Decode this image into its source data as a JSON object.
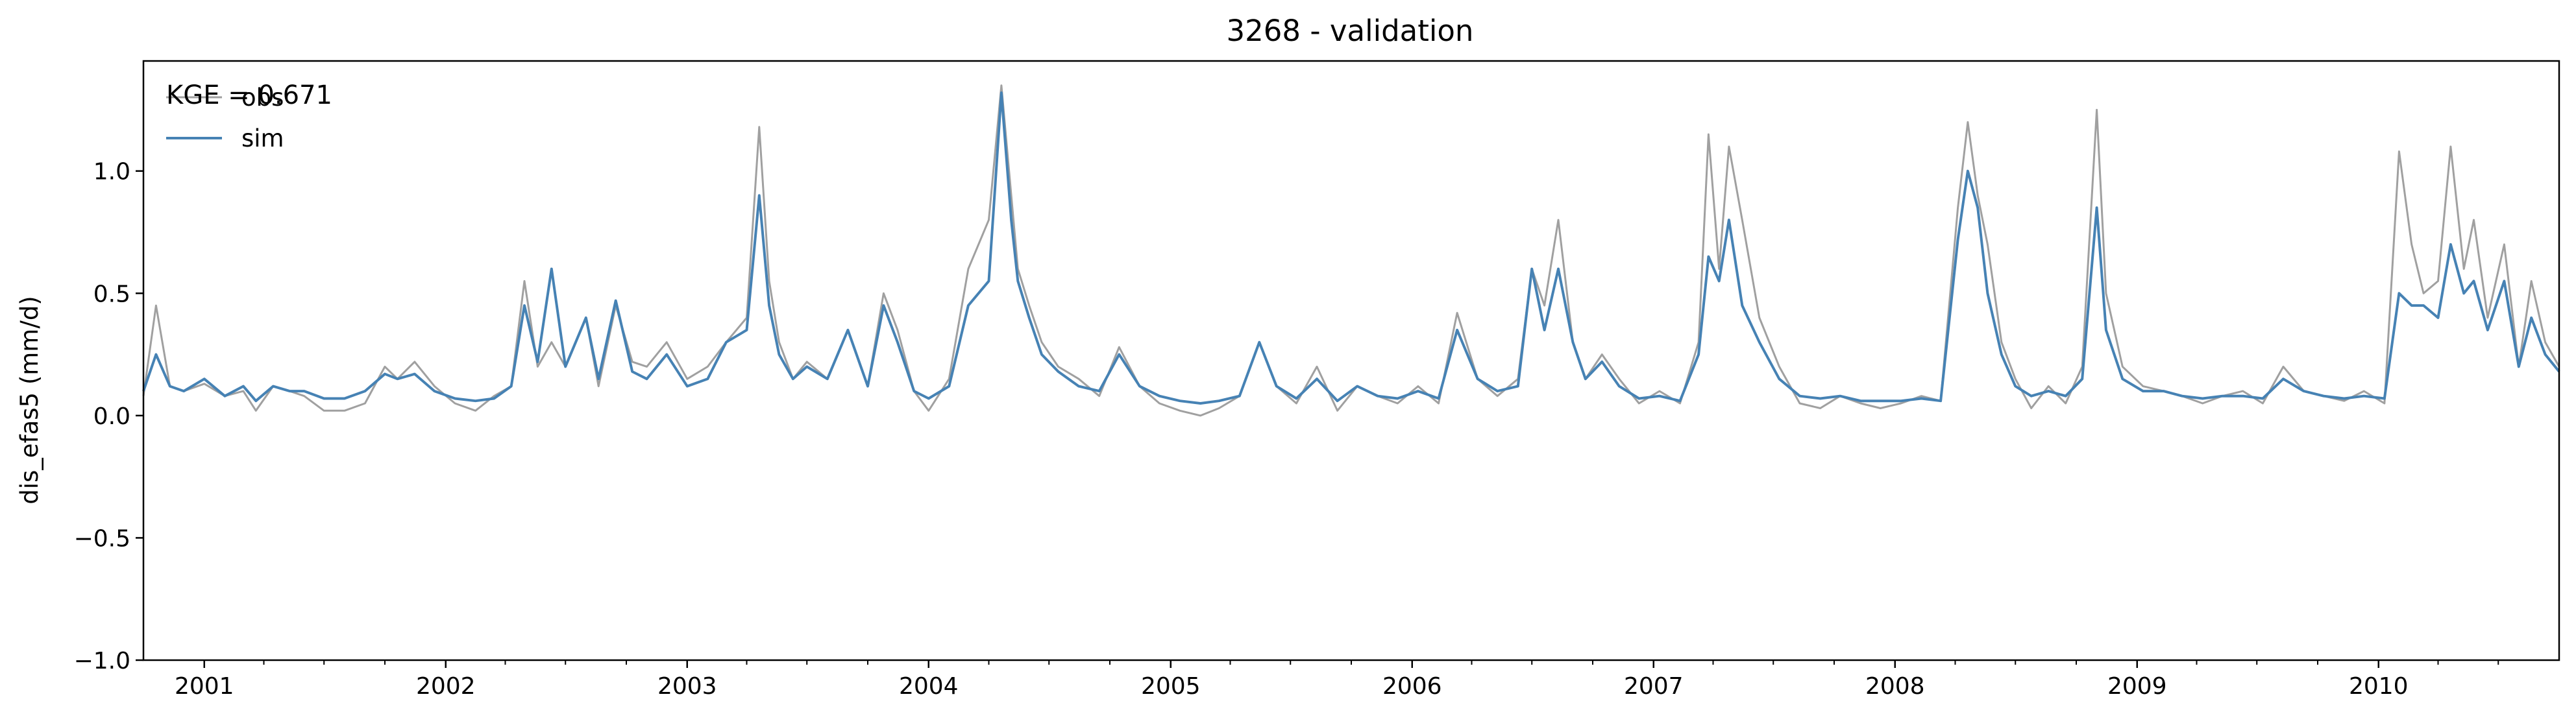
{
  "chart_data": {
    "type": "line",
    "title": "3268 - validation",
    "xlabel": "",
    "ylabel": "dis_efas5 (mm/d)",
    "annotation": "KGE = 0.671",
    "xlim": [
      "2000-10-01",
      "2010-10-01"
    ],
    "ylim": [
      -1.0,
      1.45
    ],
    "yticks": [
      -1.0,
      -0.5,
      0.0,
      0.5,
      1.0
    ],
    "ytick_labels": [
      "−1.0",
      "−0.5",
      "0.0",
      "0.5",
      "1.0"
    ],
    "xticks": [
      "2001-01-01",
      "2002-01-01",
      "2003-01-01",
      "2004-01-01",
      "2005-01-01",
      "2006-01-01",
      "2007-01-01",
      "2008-01-01",
      "2009-01-01",
      "2010-01-01"
    ],
    "xtick_labels": [
      "2001",
      "2002",
      "2003",
      "2004",
      "2005",
      "2006",
      "2007",
      "2008",
      "2009",
      "2010"
    ],
    "grid": false,
    "legend": "upper-left",
    "series": [
      {
        "name": "obs",
        "color": "#a0a0a0",
        "x": [
          "2000-10-01",
          "2000-10-20",
          "2000-11-10",
          "2000-12-01",
          "2001-01-01",
          "2001-02-01",
          "2001-03-01",
          "2001-03-20",
          "2001-04-15",
          "2001-05-10",
          "2001-06-01",
          "2001-07-01",
          "2001-08-01",
          "2001-09-01",
          "2001-10-01",
          "2001-10-20",
          "2001-11-15",
          "2001-12-15",
          "2002-01-15",
          "2002-02-15",
          "2002-03-15",
          "2002-04-10",
          "2002-04-30",
          "2002-05-20",
          "2002-06-10",
          "2002-07-01",
          "2002-08-01",
          "2002-08-20",
          "2002-09-15",
          "2002-10-10",
          "2002-11-01",
          "2002-12-01",
          "2003-01-01",
          "2003-02-01",
          "2003-03-01",
          "2003-04-01",
          "2003-04-20",
          "2003-05-05",
          "2003-05-20",
          "2003-06-10",
          "2003-07-01",
          "2003-08-01",
          "2003-09-01",
          "2003-10-01",
          "2003-10-25",
          "2003-11-15",
          "2003-12-10",
          "2004-01-01",
          "2004-02-01",
          "2004-03-01",
          "2004-04-01",
          "2004-04-20",
          "2004-05-05",
          "2004-05-15",
          "2004-06-01",
          "2004-06-20",
          "2004-07-15",
          "2004-08-15",
          "2004-09-15",
          "2004-10-15",
          "2004-11-15",
          "2004-12-15",
          "2005-01-15",
          "2005-02-15",
          "2005-03-15",
          "2005-04-15",
          "2005-05-15",
          "2005-06-10",
          "2005-07-10",
          "2005-08-10",
          "2005-09-10",
          "2005-10-10",
          "2005-11-10",
          "2005-12-10",
          "2006-01-10",
          "2006-02-10",
          "2006-03-10",
          "2006-04-10",
          "2006-05-10",
          "2006-06-10",
          "2006-07-01",
          "2006-07-20",
          "2006-08-10",
          "2006-09-01",
          "2006-09-20",
          "2006-10-15",
          "2006-11-10",
          "2006-12-10",
          "2007-01-10",
          "2007-02-10",
          "2007-03-10",
          "2007-03-25",
          "2007-04-10",
          "2007-04-25",
          "2007-05-15",
          "2007-06-10",
          "2007-07-10",
          "2007-08-10",
          "2007-09-10",
          "2007-10-10",
          "2007-11-10",
          "2007-12-10",
          "2008-01-10",
          "2008-02-10",
          "2008-03-10",
          "2008-04-05",
          "2008-04-20",
          "2008-05-05",
          "2008-05-20",
          "2008-06-10",
          "2008-07-01",
          "2008-07-25",
          "2008-08-20",
          "2008-09-15",
          "2008-10-10",
          "2008-11-01",
          "2008-11-15",
          "2008-12-10",
          "2009-01-10",
          "2009-02-10",
          "2009-03-10",
          "2009-04-10",
          "2009-05-10",
          "2009-06-10",
          "2009-07-10",
          "2009-08-10",
          "2009-09-10",
          "2009-10-10",
          "2009-11-10",
          "2009-12-10",
          "2010-01-10",
          "2010-02-01",
          "2010-02-20",
          "2010-03-10",
          "2010-04-01",
          "2010-04-20",
          "2010-05-10",
          "2010-05-25",
          "2010-06-15",
          "2010-07-10",
          "2010-08-01",
          "2010-08-20",
          "2010-09-10",
          "2010-10-01"
        ],
        "y": [
          0.08,
          0.45,
          0.12,
          0.1,
          0.13,
          0.08,
          0.1,
          0.02,
          0.12,
          0.1,
          0.08,
          0.02,
          0.02,
          0.05,
          0.2,
          0.15,
          0.22,
          0.12,
          0.05,
          0.02,
          0.08,
          0.12,
          0.55,
          0.2,
          0.3,
          0.2,
          0.4,
          0.12,
          0.45,
          0.22,
          0.2,
          0.3,
          0.15,
          0.2,
          0.3,
          0.4,
          1.18,
          0.55,
          0.3,
          0.15,
          0.22,
          0.15,
          0.35,
          0.12,
          0.5,
          0.35,
          0.1,
          0.02,
          0.15,
          0.6,
          0.8,
          1.35,
          0.9,
          0.6,
          0.45,
          0.3,
          0.2,
          0.15,
          0.08,
          0.28,
          0.12,
          0.05,
          0.02,
          0.0,
          0.03,
          0.08,
          0.3,
          0.12,
          0.05,
          0.2,
          0.02,
          0.12,
          0.08,
          0.05,
          0.12,
          0.05,
          0.42,
          0.15,
          0.08,
          0.15,
          0.6,
          0.45,
          0.8,
          0.3,
          0.15,
          0.25,
          0.15,
          0.05,
          0.1,
          0.05,
          0.3,
          1.15,
          0.6,
          1.1,
          0.8,
          0.4,
          0.2,
          0.05,
          0.03,
          0.08,
          0.05,
          0.03,
          0.05,
          0.08,
          0.06,
          0.85,
          1.2,
          0.9,
          0.7,
          0.3,
          0.15,
          0.03,
          0.12,
          0.05,
          0.2,
          1.25,
          0.5,
          0.2,
          0.12,
          0.1,
          0.08,
          0.05,
          0.08,
          0.1,
          0.05,
          0.2,
          0.1,
          0.08,
          0.06,
          0.1,
          0.05,
          1.08,
          0.7,
          0.5,
          0.55,
          1.1,
          0.6,
          0.8,
          0.4,
          0.7,
          0.2,
          0.55,
          0.3,
          0.2
        ]
      },
      {
        "name": "sim",
        "color": "#4682b4",
        "x": [
          "2000-10-01",
          "2000-10-20",
          "2000-11-10",
          "2000-12-01",
          "2001-01-01",
          "2001-02-01",
          "2001-03-01",
          "2001-03-20",
          "2001-04-15",
          "2001-05-10",
          "2001-06-01",
          "2001-07-01",
          "2001-08-01",
          "2001-09-01",
          "2001-10-01",
          "2001-10-20",
          "2001-11-15",
          "2001-12-15",
          "2002-01-15",
          "2002-02-15",
          "2002-03-15",
          "2002-04-10",
          "2002-04-30",
          "2002-05-20",
          "2002-06-10",
          "2002-07-01",
          "2002-08-01",
          "2002-08-20",
          "2002-09-15",
          "2002-10-10",
          "2002-11-01",
          "2002-12-01",
          "2003-01-01",
          "2003-02-01",
          "2003-03-01",
          "2003-04-01",
          "2003-04-20",
          "2003-05-05",
          "2003-05-20",
          "2003-06-10",
          "2003-07-01",
          "2003-08-01",
          "2003-09-01",
          "2003-10-01",
          "2003-10-25",
          "2003-11-15",
          "2003-12-10",
          "2004-01-01",
          "2004-02-01",
          "2004-03-01",
          "2004-04-01",
          "2004-04-20",
          "2004-05-05",
          "2004-05-15",
          "2004-06-01",
          "2004-06-20",
          "2004-07-15",
          "2004-08-15",
          "2004-09-15",
          "2004-10-15",
          "2004-11-15",
          "2004-12-15",
          "2005-01-15",
          "2005-02-15",
          "2005-03-15",
          "2005-04-15",
          "2005-05-15",
          "2005-06-10",
          "2005-07-10",
          "2005-08-10",
          "2005-09-10",
          "2005-10-10",
          "2005-11-10",
          "2005-12-10",
          "2006-01-10",
          "2006-02-10",
          "2006-03-10",
          "2006-04-10",
          "2006-05-10",
          "2006-06-10",
          "2006-07-01",
          "2006-07-20",
          "2006-08-10",
          "2006-09-01",
          "2006-09-20",
          "2006-10-15",
          "2006-11-10",
          "2006-12-10",
          "2007-01-10",
          "2007-02-10",
          "2007-03-10",
          "2007-03-25",
          "2007-04-10",
          "2007-04-25",
          "2007-05-15",
          "2007-06-10",
          "2007-07-10",
          "2007-08-10",
          "2007-09-10",
          "2007-10-10",
          "2007-11-10",
          "2007-12-10",
          "2008-01-10",
          "2008-02-10",
          "2008-03-10",
          "2008-04-05",
          "2008-04-20",
          "2008-05-05",
          "2008-05-20",
          "2008-06-10",
          "2008-07-01",
          "2008-07-25",
          "2008-08-20",
          "2008-09-15",
          "2008-10-10",
          "2008-11-01",
          "2008-11-15",
          "2008-12-10",
          "2009-01-10",
          "2009-02-10",
          "2009-03-10",
          "2009-04-10",
          "2009-05-10",
          "2009-06-10",
          "2009-07-10",
          "2009-08-10",
          "2009-09-10",
          "2009-10-10",
          "2009-11-10",
          "2009-12-10",
          "2010-01-10",
          "2010-02-01",
          "2010-02-20",
          "2010-03-10",
          "2010-04-01",
          "2010-04-20",
          "2010-05-10",
          "2010-05-25",
          "2010-06-15",
          "2010-07-10",
          "2010-08-01",
          "2010-08-20",
          "2010-09-10",
          "2010-10-01"
        ],
        "y": [
          0.1,
          0.25,
          0.12,
          0.1,
          0.15,
          0.08,
          0.12,
          0.06,
          0.12,
          0.1,
          0.1,
          0.07,
          0.07,
          0.1,
          0.17,
          0.15,
          0.17,
          0.1,
          0.07,
          0.06,
          0.07,
          0.12,
          0.45,
          0.22,
          0.6,
          0.2,
          0.4,
          0.15,
          0.47,
          0.18,
          0.15,
          0.25,
          0.12,
          0.15,
          0.3,
          0.35,
          0.9,
          0.45,
          0.25,
          0.15,
          0.2,
          0.15,
          0.35,
          0.12,
          0.45,
          0.3,
          0.1,
          0.07,
          0.12,
          0.45,
          0.55,
          1.32,
          0.8,
          0.55,
          0.4,
          0.25,
          0.18,
          0.12,
          0.1,
          0.25,
          0.12,
          0.08,
          0.06,
          0.05,
          0.06,
          0.08,
          0.3,
          0.12,
          0.07,
          0.15,
          0.06,
          0.12,
          0.08,
          0.07,
          0.1,
          0.07,
          0.35,
          0.15,
          0.1,
          0.12,
          0.6,
          0.35,
          0.6,
          0.3,
          0.15,
          0.22,
          0.12,
          0.07,
          0.08,
          0.06,
          0.25,
          0.65,
          0.55,
          0.8,
          0.45,
          0.3,
          0.15,
          0.08,
          0.07,
          0.08,
          0.06,
          0.06,
          0.06,
          0.07,
          0.06,
          0.72,
          1.0,
          0.85,
          0.5,
          0.25,
          0.12,
          0.08,
          0.1,
          0.08,
          0.15,
          0.85,
          0.35,
          0.15,
          0.1,
          0.1,
          0.08,
          0.07,
          0.08,
          0.08,
          0.07,
          0.15,
          0.1,
          0.08,
          0.07,
          0.08,
          0.07,
          0.5,
          0.45,
          0.45,
          0.4,
          0.7,
          0.5,
          0.55,
          0.35,
          0.55,
          0.2,
          0.4,
          0.25,
          0.18
        ]
      }
    ]
  }
}
